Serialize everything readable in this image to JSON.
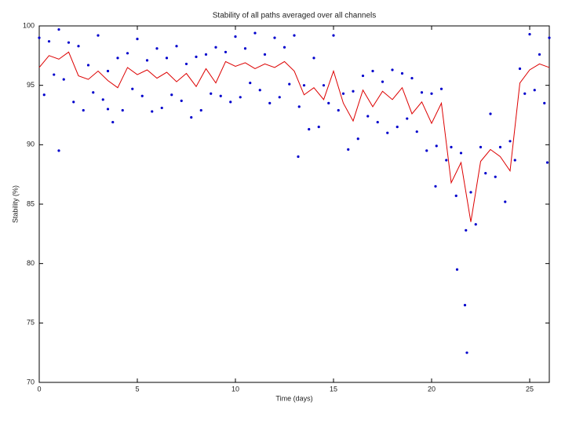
{
  "chart_data": {
    "type": "scatter",
    "title": "Stability of all paths averaged over all channels",
    "xlabel": "Time (days)",
    "ylabel": "Stability (%)",
    "xlim": [
      0,
      26
    ],
    "ylim": [
      70,
      100
    ],
    "xticks": [
      0,
      5,
      10,
      15,
      20,
      25
    ],
    "yticks": [
      70,
      75,
      80,
      85,
      90,
      95,
      100
    ],
    "grid": false,
    "series": [
      {
        "mode": "markers",
        "color": "#0000cc",
        "x": [
          0,
          0.25,
          0.5,
          0.75,
          1,
          1.25,
          1.5,
          1.75,
          2,
          2.25,
          2.5,
          2.75,
          3,
          3.25,
          3.5,
          3.75,
          4,
          4.25,
          4.5,
          4.75,
          5,
          5.25,
          5.5,
          5.75,
          6,
          6.25,
          6.5,
          6.75,
          7,
          7.25,
          7.5,
          7.75,
          8,
          8.25,
          8.5,
          8.75,
          9,
          9.25,
          9.5,
          9.75,
          10,
          10.25,
          10.5,
          10.75,
          11,
          11.25,
          11.5,
          11.75,
          12,
          12.25,
          12.5,
          12.75,
          13,
          13.25,
          13.5,
          13.75,
          14,
          14.25,
          14.5,
          14.75,
          15,
          15.25,
          15.5,
          15.75,
          16,
          16.25,
          16.5,
          16.75,
          17,
          17.25,
          17.5,
          17.75,
          18,
          18.25,
          18.5,
          18.75,
          19,
          19.25,
          19.5,
          19.75,
          20,
          20.25,
          20.5,
          20.75,
          21,
          21.25,
          21.5,
          21.75,
          22,
          22.25,
          22.5,
          22.75,
          23,
          23.25,
          23.5,
          23.75,
          24,
          24.25,
          24.5,
          24.75,
          25,
          25.25,
          25.5,
          25.75,
          26,
          1,
          3.5,
          13.2,
          21.7,
          21.8,
          21.3,
          25.9,
          20.2
        ],
        "values": [
          99.0,
          94.2,
          98.7,
          95.9,
          99.7,
          95.5,
          98.6,
          93.6,
          98.3,
          92.9,
          96.7,
          94.4,
          99.2,
          93.8,
          96.2,
          91.9,
          97.3,
          92.9,
          97.7,
          94.7,
          98.9,
          94.1,
          97.1,
          92.8,
          98.1,
          93.1,
          97.3,
          94.2,
          98.3,
          93.7,
          96.8,
          92.3,
          97.4,
          92.9,
          97.6,
          94.3,
          98.2,
          94.1,
          97.8,
          93.6,
          99.1,
          94.0,
          98.1,
          95.2,
          99.4,
          94.6,
          97.6,
          93.5,
          99.0,
          94.0,
          98.2,
          95.1,
          99.2,
          93.2,
          95.0,
          91.3,
          97.3,
          91.5,
          95.0,
          93.5,
          99.2,
          92.9,
          94.3,
          89.6,
          94.5,
          90.5,
          95.8,
          92.4,
          96.2,
          91.9,
          95.3,
          91.0,
          96.3,
          91.5,
          96.0,
          92.2,
          95.6,
          91.1,
          94.4,
          89.5,
          94.3,
          89.9,
          94.7,
          88.7,
          89.8,
          85.7,
          89.3,
          82.8,
          86.0,
          83.3,
          89.8,
          87.6,
          92.6,
          87.3,
          89.8,
          85.2,
          90.3,
          88.7,
          96.4,
          94.3,
          99.3,
          94.6,
          97.6,
          93.5,
          99.0,
          89.5,
          93.0,
          89.0,
          76.5,
          72.5,
          79.5,
          88.5,
          86.5
        ]
      },
      {
        "mode": "lines",
        "color": "#dd0000",
        "x": [
          0,
          0.5,
          1,
          1.5,
          2,
          2.5,
          3,
          3.5,
          4,
          4.5,
          5,
          5.5,
          6,
          6.5,
          7,
          7.5,
          8,
          8.5,
          9,
          9.5,
          10,
          10.5,
          11,
          11.5,
          12,
          12.5,
          13,
          13.5,
          14,
          14.5,
          15,
          15.5,
          16,
          16.5,
          17,
          17.5,
          18,
          18.5,
          19,
          19.5,
          20,
          20.5,
          21,
          21.5,
          22,
          22.5,
          23,
          23.5,
          24,
          24.5,
          25,
          25.5,
          26
        ],
        "values": [
          96.5,
          97.5,
          97.2,
          97.8,
          95.8,
          95.5,
          96.2,
          95.4,
          94.8,
          96.5,
          95.9,
          96.3,
          95.6,
          96.1,
          95.3,
          96.0,
          94.9,
          96.4,
          95.2,
          97.0,
          96.6,
          96.9,
          96.4,
          96.8,
          96.5,
          97.0,
          96.2,
          94.2,
          94.8,
          93.8,
          96.2,
          93.5,
          92.0,
          94.6,
          93.2,
          94.5,
          93.8,
          94.8,
          92.6,
          93.6,
          91.8,
          93.5,
          86.8,
          88.5,
          83.5,
          88.6,
          89.6,
          89.0,
          87.8,
          95.2,
          96.3,
          96.8,
          96.5
        ]
      }
    ]
  }
}
